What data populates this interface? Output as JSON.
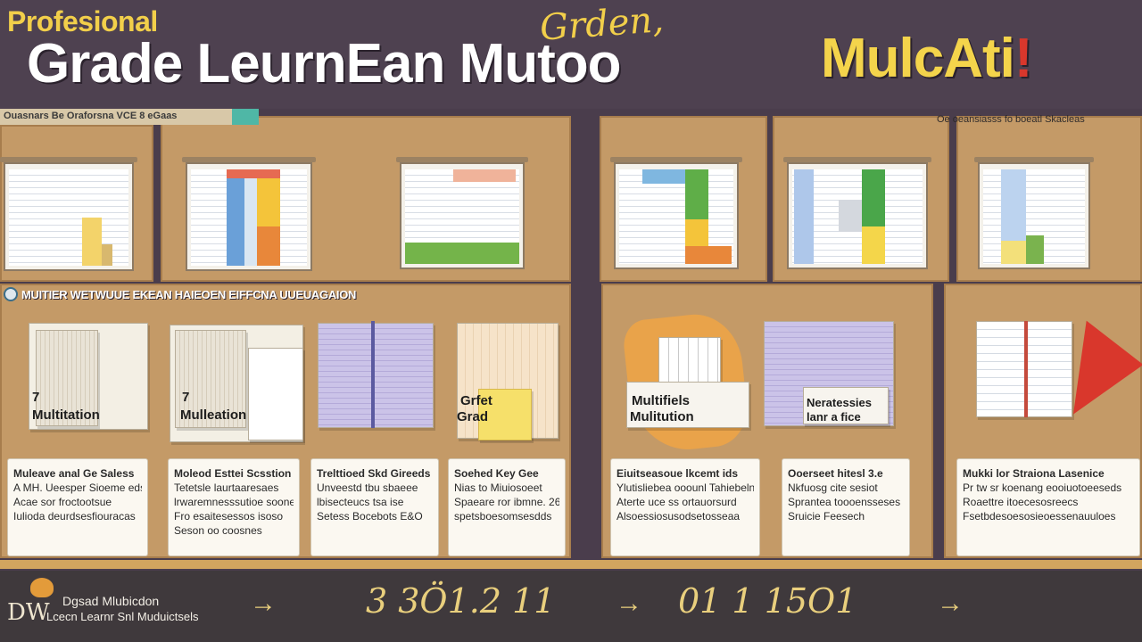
{
  "header": {
    "small_title": "Profesional",
    "main_title": "Grade LeurnEan Mutoo",
    "script_title": "Grden,",
    "right_title": "MulcAti",
    "right_bang": "!"
  },
  "labels": {
    "top_strip": "Ouasnars Be Oraforsna VCE 8 eGaas",
    "top_right": "Oe oeansiasss fo boeatl   Skacleas",
    "mid_banner": "MUITIER WETWUUE EKEAN HAIEOEN EIFFCNA UUEUAGAION"
  },
  "books": [
    {
      "label1": "7",
      "label2": "Multitation"
    },
    {
      "label1": "7",
      "label2": "Mulleation"
    },
    {
      "label1": "",
      "label2": ""
    },
    {
      "label1": "Grfet",
      "label2": "Grad"
    },
    {
      "label1": "Multifiels",
      "label2": "Mulitution"
    },
    {
      "label1": "Neratessies",
      "label2": "lanr a fice"
    }
  ],
  "cards": [
    {
      "lines": [
        "Muleave anal Ge Saless",
        "A MH. Ueesper Sioeme eds",
        "Acae sor froctootsue",
        "Iulioda deurdsesfiouracas"
      ]
    },
    {
      "lines": [
        "Moleod  Esttei Scsstion",
        "Tetetsle laurtaaresaes",
        "lrwaremnesssutioe soone",
        "Fro esaitesessos isoso",
        "Seson oo coosnes"
      ]
    },
    {
      "lines": [
        "Trelttioed Skd Gireeds",
        "Unveestd tbu sbaeee",
        "lbisecteucs tsa ise",
        "Setess Bocebots E&O"
      ]
    },
    {
      "lines": [
        "Soehed  Key Gee",
        "Nias to Miuiosoeet",
        "Spaeare ror ibmne. 26",
        "spetsboesomsesdds"
      ]
    },
    {
      "lines": [
        "Eiuitseasoue lkcemt ids",
        "Ylutisliebea ooounl Tahiebeln",
        "Aterte uce ss ortauorsurd",
        "Alsoessiosusodsetosseaa"
      ]
    },
    {
      "lines": [
        "Ooerseet hitesl 3.e",
        "Nkfuosg cite sesiot",
        "Sprantea toooensseses",
        "Sruicie Feesech"
      ]
    },
    {
      "lines": [
        "Mukki lor Straiona Lasenice",
        "Pr tw sr koenang eooiuotoeeseds",
        "Roaettre itoecesosreecs",
        "Fsetbdesoesosieoessenauuloes"
      ]
    }
  ],
  "footer": {
    "logo_mark": "DW",
    "line1": "Dgsad Mlubicdon",
    "line2": "Lcecn Learnr Snl Muduictsels",
    "sequence1": "3 3Ö1.2 11",
    "sequence2": "01 1 15O1",
    "arrow": "→"
  },
  "colors": {
    "header_bg": "#4e4150",
    "title_white": "#ffffff",
    "title_yellow": "#f4d44b",
    "board_tan": "#c49a67",
    "footer_bg": "#3f393c",
    "accent_red": "#d9372c"
  }
}
